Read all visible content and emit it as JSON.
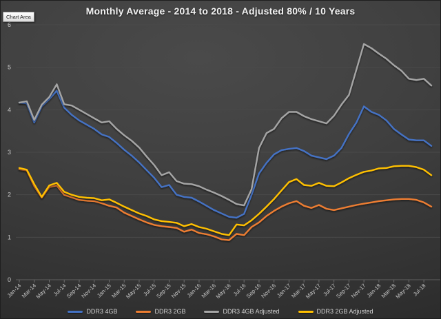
{
  "tooltip": {
    "label": "Chart Area"
  },
  "chart_data": {
    "type": "line",
    "title": "Monthly Average - 2014 to 2018 - Adjusted 80% / 10 Years",
    "xlabel": "",
    "ylabel": "",
    "ylim": [
      0,
      6
    ],
    "y_ticks": [
      0,
      1,
      2,
      3,
      4,
      5,
      6
    ],
    "grid": true,
    "legend_position": "bottom",
    "x_label_every": 2,
    "x": [
      "Jan-14",
      "Feb-14",
      "Mar-14",
      "Apr-14",
      "May-14",
      "Jun-14",
      "Jul-14",
      "Aug-14",
      "Sep-14",
      "Oct-14",
      "Nov-14",
      "Dec-14",
      "Jan-15",
      "Feb-15",
      "Mar-15",
      "Apr-15",
      "May-15",
      "Jun-15",
      "Jul-15",
      "Aug-15",
      "Sep-15",
      "Oct-15",
      "Nov-15",
      "Dec-15",
      "Jan-16",
      "Feb-16",
      "Mar-16",
      "Apr-16",
      "May-16",
      "Jun-16",
      "Jul-16",
      "Aug-16",
      "Sep-16",
      "Oct-16",
      "Nov-16",
      "Dec-16",
      "Jan-17",
      "Feb-17",
      "Mar-17",
      "Apr-17",
      "May-17",
      "Jun-17",
      "Jul-17",
      "Aug-17",
      "Sep-17",
      "Oct-17",
      "Nov-17",
      "Dec-17",
      "Jan-18",
      "Feb-18",
      "Mar-18",
      "Apr-18",
      "May-18",
      "Jun-18",
      "Jul-18",
      "Aug-18"
    ],
    "series": [
      {
        "name": "DDR3 4GB",
        "color": "#4472C4",
        "values": [
          4.17,
          4.15,
          3.7,
          4.08,
          4.25,
          4.45,
          4.05,
          3.88,
          3.75,
          3.65,
          3.55,
          3.42,
          3.36,
          3.22,
          3.06,
          2.92,
          2.76,
          2.58,
          2.4,
          2.18,
          2.23,
          2.0,
          1.95,
          1.93,
          1.84,
          1.74,
          1.64,
          1.56,
          1.48,
          1.46,
          1.55,
          2.0,
          2.5,
          2.75,
          2.95,
          3.05,
          3.08,
          3.1,
          3.03,
          2.92,
          2.88,
          2.84,
          2.92,
          3.1,
          3.43,
          3.7,
          4.08,
          3.95,
          3.88,
          3.75,
          3.55,
          3.42,
          3.3,
          3.28,
          3.28,
          3.15
        ]
      },
      {
        "name": "DDR3 2GB",
        "color": "#ED7D31",
        "values": [
          2.6,
          2.57,
          2.2,
          1.93,
          2.18,
          2.22,
          2.0,
          1.94,
          1.88,
          1.86,
          1.85,
          1.8,
          1.74,
          1.7,
          1.58,
          1.5,
          1.42,
          1.35,
          1.29,
          1.26,
          1.24,
          1.22,
          1.13,
          1.18,
          1.1,
          1.07,
          1.02,
          0.95,
          0.93,
          1.08,
          1.05,
          1.24,
          1.35,
          1.5,
          1.62,
          1.72,
          1.8,
          1.85,
          1.74,
          1.69,
          1.76,
          1.67,
          1.64,
          1.68,
          1.72,
          1.76,
          1.79,
          1.82,
          1.85,
          1.87,
          1.89,
          1.9,
          1.9,
          1.88,
          1.82,
          1.72
        ]
      },
      {
        "name": "DDR3 4GB Adjusted",
        "color": "#A5A5A5",
        "values": [
          4.17,
          4.2,
          3.76,
          4.12,
          4.3,
          4.6,
          4.13,
          4.1,
          4.0,
          3.9,
          3.8,
          3.7,
          3.73,
          3.55,
          3.4,
          3.27,
          3.11,
          2.9,
          2.7,
          2.46,
          2.53,
          2.32,
          2.26,
          2.25,
          2.2,
          2.12,
          2.05,
          1.97,
          1.88,
          1.78,
          1.75,
          2.13,
          3.1,
          3.45,
          3.55,
          3.8,
          3.95,
          3.95,
          3.85,
          3.78,
          3.73,
          3.68,
          3.86,
          4.12,
          4.35,
          4.95,
          5.55,
          5.45,
          5.32,
          5.2,
          5.05,
          4.92,
          4.73,
          4.7,
          4.73,
          4.57
        ]
      },
      {
        "name": "DDR3 2GB Adjusted",
        "color": "#FFC000",
        "values": [
          2.63,
          2.59,
          2.25,
          1.95,
          2.22,
          2.28,
          2.07,
          2.0,
          1.95,
          1.93,
          1.92,
          1.87,
          1.89,
          1.81,
          1.72,
          1.64,
          1.56,
          1.5,
          1.42,
          1.38,
          1.36,
          1.34,
          1.26,
          1.31,
          1.24,
          1.2,
          1.14,
          1.08,
          1.05,
          1.3,
          1.28,
          1.4,
          1.55,
          1.72,
          1.9,
          2.1,
          2.3,
          2.37,
          2.23,
          2.21,
          2.28,
          2.21,
          2.2,
          2.29,
          2.39,
          2.47,
          2.54,
          2.57,
          2.62,
          2.63,
          2.67,
          2.68,
          2.68,
          2.65,
          2.59,
          2.46
        ]
      }
    ],
    "style": {
      "grid_color": "#4a4a4a",
      "axis_color": "#606060",
      "tick_color": "#6e6e6e",
      "label_color": "#c6c6c6"
    }
  }
}
